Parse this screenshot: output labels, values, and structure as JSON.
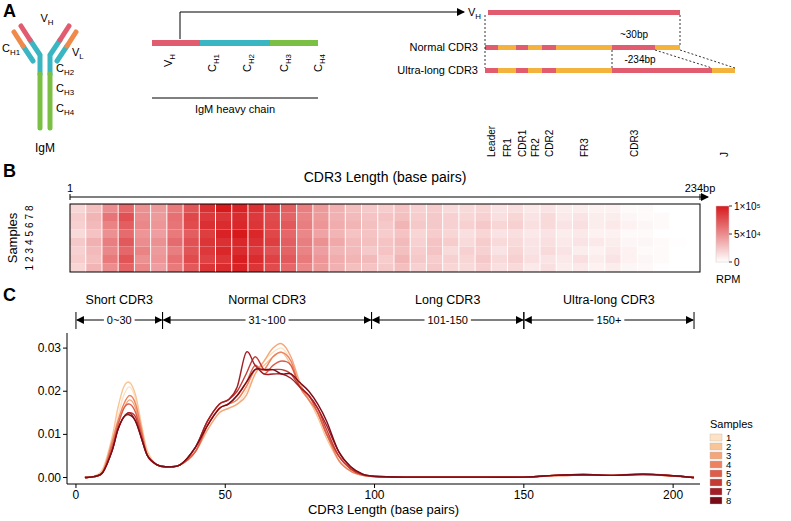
{
  "panel_a": {
    "panel_label": "A",
    "antibody": {
      "name": "IgM",
      "labels": [
        "CH1",
        "VH",
        "VL",
        "CH2",
        "CH3",
        "CH4"
      ]
    },
    "heavy_chain": {
      "segments": [
        "VH",
        "CH1",
        "CH2",
        "CH3",
        "CH4"
      ],
      "title": "IgM heavy chain"
    },
    "vh_label": "VH",
    "rows": [
      {
        "label": "Normal CDR3",
        "length": "~30bp"
      },
      {
        "label": "Ultra-long CDR3",
        "length": "-234bp"
      }
    ],
    "regions": [
      "Leader",
      "FR1",
      "CDR1",
      "FR2",
      "CDR2",
      "FR3",
      "CDR3",
      "J"
    ]
  },
  "chart_data": [
    {
      "type": "heatmap",
      "panel": "B",
      "title": "CDR3 Length (base pairs)",
      "y_label": "Samples",
      "categories": [
        "1",
        "2",
        "3",
        "4",
        "5",
        "6",
        "7",
        "8"
      ],
      "bins": [
        1,
        7,
        13,
        19,
        25,
        31,
        37,
        43,
        49,
        55,
        61,
        67,
        73,
        79,
        85,
        91,
        97,
        103,
        109,
        115,
        121,
        127,
        133,
        139,
        145,
        151,
        157,
        163,
        169,
        175,
        181,
        187,
        193,
        199,
        205,
        211,
        217,
        223,
        229,
        234
      ],
      "xlim": [
        1,
        234
      ],
      "xticks": [
        1,
        {
          "value": 234,
          "label": "234bp"
        }
      ],
      "color": "#d7191c",
      "cells": [
        [
          18000,
          32000,
          50000,
          68000,
          52000,
          42000,
          58000,
          72000,
          88000,
          92000,
          96000,
          88000,
          78000,
          66000,
          52000,
          44000,
          34000,
          28000,
          26000,
          24000,
          28000,
          20000,
          24000,
          18000,
          16000,
          20000,
          14000,
          16000,
          10000,
          14000,
          8000,
          10000,
          6000,
          8000,
          4000,
          3000,
          1000,
          0,
          0
        ],
        [
          22000,
          28000,
          58000,
          74000,
          48000,
          46000,
          62000,
          78000,
          82000,
          88000,
          98000,
          92000,
          82000,
          72000,
          58000,
          46000,
          36000,
          32000,
          30000,
          22000,
          32000,
          24000,
          22000,
          20000,
          18000,
          24000,
          16000,
          20000,
          14000,
          12000,
          10000,
          14000,
          8000,
          12000,
          6000,
          4000,
          2000,
          0,
          0
        ],
        [
          20000,
          30000,
          52000,
          66000,
          54000,
          44000,
          56000,
          74000,
          86000,
          94000,
          92000,
          86000,
          76000,
          68000,
          54000,
          42000,
          32000,
          30000,
          24000,
          26000,
          28000,
          22000,
          26000,
          16000,
          20000,
          20000,
          12000,
          18000,
          12000,
          16000,
          12000,
          8000,
          6000,
          10000,
          6000,
          2000,
          2000,
          0,
          0
        ],
        [
          24000,
          34000,
          56000,
          72000,
          50000,
          48000,
          64000,
          76000,
          88000,
          90000,
          94000,
          90000,
          84000,
          70000,
          56000,
          48000,
          38000,
          30000,
          28000,
          26000,
          30000,
          20000,
          26000,
          22000,
          16000,
          22000,
          16000,
          16000,
          12000,
          14000,
          10000,
          12000,
          10000,
          8000,
          4000,
          4000,
          2000,
          1000,
          0
        ],
        [
          16000,
          26000,
          48000,
          64000,
          46000,
          42000,
          58000,
          70000,
          84000,
          96000,
          100000,
          94000,
          80000,
          66000,
          52000,
          40000,
          32000,
          26000,
          26000,
          22000,
          26000,
          18000,
          22000,
          18000,
          14000,
          18000,
          12000,
          14000,
          10000,
          12000,
          8000,
          10000,
          6000,
          6000,
          2000,
          2000,
          0,
          0,
          0
        ],
        [
          20000,
          30000,
          54000,
          70000,
          52000,
          46000,
          60000,
          78000,
          90000,
          92000,
          94000,
          88000,
          80000,
          72000,
          56000,
          46000,
          36000,
          32000,
          28000,
          24000,
          32000,
          24000,
          24000,
          20000,
          20000,
          24000,
          18000,
          20000,
          14000,
          16000,
          12000,
          14000,
          8000,
          10000,
          6000,
          4000,
          2000,
          0,
          0
        ],
        [
          22000,
          32000,
          60000,
          76000,
          50000,
          44000,
          62000,
          80000,
          86000,
          88000,
          92000,
          86000,
          78000,
          68000,
          54000,
          44000,
          34000,
          30000,
          26000,
          26000,
          28000,
          22000,
          24000,
          20000,
          18000,
          20000,
          14000,
          18000,
          12000,
          16000,
          10000,
          12000,
          8000,
          8000,
          4000,
          2000,
          2000,
          0,
          0
        ],
        [
          18000,
          28000,
          50000,
          66000,
          48000,
          44000,
          58000,
          74000,
          90000,
          100000,
          96000,
          90000,
          82000,
          70000,
          56000,
          44000,
          34000,
          28000,
          24000,
          22000,
          26000,
          20000,
          22000,
          16000,
          16000,
          18000,
          12000,
          14000,
          10000,
          12000,
          8000,
          8000,
          6000,
          6000,
          2000,
          2000,
          0,
          0,
          0
        ]
      ],
      "colorbar": {
        "range": [
          0,
          100000
        ],
        "ticks": [
          0,
          {
            "value": 50000,
            "label": "5×10⁴"
          },
          {
            "value": 100000,
            "label": "1×10⁵"
          }
        ],
        "label": "RPM"
      }
    },
    {
      "type": "line",
      "panel": "C",
      "xlabel": "CDR3 Length (base pairs)",
      "xlim": [
        -3,
        209
      ],
      "ylim": [
        -0.0015,
        0.0335
      ],
      "xticks": [
        0,
        50,
        100,
        150,
        200
      ],
      "yticks": [
        {
          "value": 0,
          "label": "0.00"
        },
        0.01,
        0.02,
        0.03
      ],
      "legend": "right",
      "legend_title": "Samples",
      "regions": [
        {
          "label": "Short CDR3",
          "range_label": "0~30",
          "start": 0,
          "end": 29
        },
        {
          "label": "Normal CDR3",
          "range_label": "31~100",
          "start": 29,
          "end": 99
        },
        {
          "label": "Long CDR3",
          "range_label": "101-150",
          "start": 99,
          "end": 150
        },
        {
          "label": "Ultra-long CDR3",
          "range_label": "150+",
          "start": 150,
          "end": 207
        }
      ],
      "x": [
        3,
        6,
        9,
        12,
        14,
        16,
        18,
        20,
        22,
        24,
        27,
        30,
        35,
        40,
        44,
        48,
        51,
        54,
        57,
        60,
        63,
        66,
        69,
        72,
        75,
        78,
        81,
        84,
        88,
        92,
        96,
        100,
        110,
        130,
        150,
        160,
        170,
        180,
        190,
        200,
        207
      ],
      "series": [
        {
          "name": "1",
          "color": "#fde2c4",
          "values": [
            0,
            0.0002,
            0.0015,
            0.008,
            0.014,
            0.019,
            0.021,
            0.018,
            0.011,
            0.006,
            0.003,
            0.0025,
            0.003,
            0.006,
            0.011,
            0.015,
            0.016,
            0.017,
            0.02,
            0.024,
            0.027,
            0.029,
            0.03,
            0.027,
            0.021,
            0.018,
            0.015,
            0.01,
            0.004,
            0.0015,
            0.0005,
            0.0002,
            0.0001,
            0.0001,
            0.0001,
            0.0004,
            0.0006,
            0.0005,
            0.0007,
            0.0004,
            0
          ]
        },
        {
          "name": "2",
          "color": "#f9c596",
          "values": [
            0,
            0.0003,
            0.002,
            0.009,
            0.016,
            0.021,
            0.022,
            0.019,
            0.012,
            0.006,
            0.003,
            0.0025,
            0.003,
            0.006,
            0.012,
            0.016,
            0.017,
            0.018,
            0.021,
            0.025,
            0.026,
            0.028,
            0.029,
            0.026,
            0.021,
            0.018,
            0.014,
            0.009,
            0.004,
            0.0015,
            0.0005,
            0.0002,
            0.0001,
            0.0001,
            0.0001,
            0.0005,
            0.0007,
            0.0005,
            0.0008,
            0.0003,
            0
          ]
        },
        {
          "name": "3",
          "color": "#f4a67a",
          "values": [
            0,
            0.0002,
            0.0012,
            0.007,
            0.012,
            0.016,
            0.018,
            0.016,
            0.01,
            0.005,
            0.003,
            0.0025,
            0.003,
            0.006,
            0.011,
            0.015,
            0.016,
            0.017,
            0.019,
            0.024,
            0.027,
            0.03,
            0.031,
            0.028,
            0.022,
            0.018,
            0.015,
            0.01,
            0.005,
            0.002,
            0.0006,
            0.0002,
            0.0001,
            0.0001,
            0.0001,
            0.0004,
            0.0006,
            0.0005,
            0.0007,
            0.0003,
            0
          ]
        },
        {
          "name": "4",
          "color": "#ec8260",
          "values": [
            0,
            0.0002,
            0.0014,
            0.008,
            0.013,
            0.017,
            0.019,
            0.017,
            0.011,
            0.005,
            0.003,
            0.0025,
            0.003,
            0.006,
            0.012,
            0.016,
            0.017,
            0.018,
            0.021,
            0.025,
            0.025,
            0.028,
            0.029,
            0.027,
            0.021,
            0.018,
            0.015,
            0.01,
            0.004,
            0.0015,
            0.0005,
            0.0002,
            0.0001,
            0.0001,
            0.0001,
            0.0005,
            0.0007,
            0.0005,
            0.0009,
            0.0004,
            0
          ]
        },
        {
          "name": "5",
          "color": "#dd5c4a",
          "values": [
            0,
            0.0002,
            0.0013,
            0.007,
            0.012,
            0.016,
            0.017,
            0.015,
            0.01,
            0.005,
            0.003,
            0.0025,
            0.003,
            0.006,
            0.012,
            0.016,
            0.017,
            0.019,
            0.022,
            0.026,
            0.024,
            0.026,
            0.027,
            0.026,
            0.021,
            0.019,
            0.015,
            0.01,
            0.005,
            0.002,
            0.0006,
            0.0002,
            0.0001,
            0.0001,
            0.0001,
            0.0004,
            0.0006,
            0.0005,
            0.0007,
            0.0004,
            0
          ]
        },
        {
          "name": "6",
          "color": "#c43a34",
          "values": [
            0,
            0.0002,
            0.0012,
            0.006,
            0.011,
            0.014,
            0.015,
            0.014,
            0.009,
            0.005,
            0.003,
            0.0025,
            0.003,
            0.007,
            0.013,
            0.017,
            0.018,
            0.02,
            0.024,
            0.028,
            0.025,
            0.025,
            0.025,
            0.024,
            0.021,
            0.019,
            0.016,
            0.011,
            0.005,
            0.002,
            0.0006,
            0.0002,
            0.0001,
            0.0001,
            0.0001,
            0.0005,
            0.0007,
            0.0005,
            0.0008,
            0.0004,
            0
          ]
        },
        {
          "name": "7",
          "color": "#a11f25",
          "values": [
            0,
            0.0002,
            0.0012,
            0.006,
            0.011,
            0.014,
            0.015,
            0.013,
            0.009,
            0.005,
            0.003,
            0.0025,
            0.003,
            0.007,
            0.013,
            0.017,
            0.018,
            0.021,
            0.029,
            0.026,
            0.024,
            0.024,
            0.024,
            0.023,
            0.021,
            0.019,
            0.016,
            0.012,
            0.006,
            0.0025,
            0.0008,
            0.0003,
            0.0001,
            0.0001,
            0.0001,
            0.0005,
            0.0006,
            0.0005,
            0.0007,
            0.0004,
            0
          ]
        },
        {
          "name": "8",
          "color": "#7a0c17",
          "values": [
            0,
            0.0002,
            0.0012,
            0.006,
            0.011,
            0.014,
            0.0145,
            0.013,
            0.009,
            0.005,
            0.003,
            0.0025,
            0.003,
            0.007,
            0.012,
            0.016,
            0.017,
            0.019,
            0.022,
            0.025,
            0.025,
            0.025,
            0.024,
            0.024,
            0.022,
            0.02,
            0.017,
            0.013,
            0.006,
            0.0025,
            0.0008,
            0.0003,
            0.0001,
            0.0001,
            0.0001,
            0.0005,
            0.0007,
            0.0005,
            0.0008,
            0.0004,
            0
          ]
        }
      ]
    }
  ]
}
